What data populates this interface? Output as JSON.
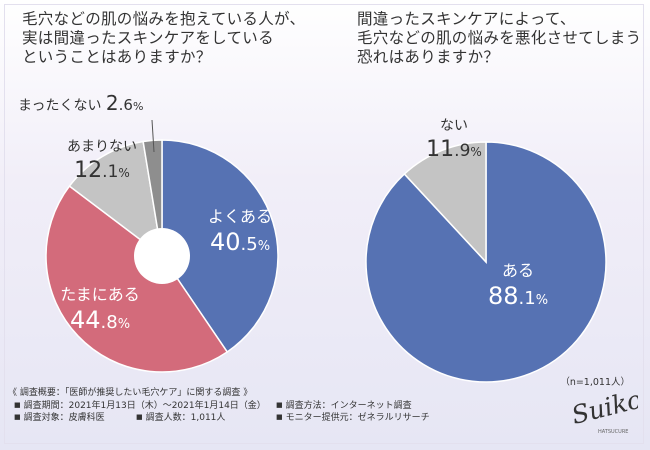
{
  "questions": {
    "left": "毛穴などの肌の悩みを抱えている人が、\n実は間違ったスキンケアをしている\nということはありますか？",
    "right": "間違ったスキンケアによって、\n毛穴などの肌の悩みを悪化させてしまう\n恐れはありますか？"
  },
  "chart_data": [
    {
      "type": "pie",
      "variant": "donut",
      "start_angle_deg": 0,
      "direction": "clockwise",
      "slices": [
        {
          "label": "よくある",
          "value": 40.5,
          "value_label": "40.5%",
          "color": "#5672b3"
        },
        {
          "label": "たまにある",
          "value": 44.8,
          "value_label": "44.8%",
          "color": "#d36b7b"
        },
        {
          "label": "あまりない",
          "value": 12.1,
          "value_label": "12.1%",
          "color": "#c4c4c4"
        },
        {
          "label": "まったくない",
          "value": 2.6,
          "value_label": "2.6%",
          "color": "#8e8e8e"
        }
      ]
    },
    {
      "type": "pie",
      "start_angle_deg": 0,
      "direction": "clockwise",
      "slices": [
        {
          "label": "ある",
          "value": 88.1,
          "value_label": "88.1%",
          "color": "#5672b3"
        },
        {
          "label": "ない",
          "value": 11.9,
          "value_label": "11.9%",
          "color": "#c4c4c4"
        }
      ]
    }
  ],
  "sample_note": "（n=1,011人）",
  "footer": {
    "title": "《 調査概要：「医師が推奨したい毛穴ケア」に関する調査 》",
    "period": "調査期間：2021年1月13日（木）〜2021年1月14日（金）",
    "method": "調査方法：インターネット調査",
    "target": "調査対象：皮膚科医",
    "count": "調査人数：1,011人",
    "provider": "モニター提供元：ゼネラルリサーチ"
  },
  "brand": {
    "name": "Suiko",
    "sub": "HATSUCURE"
  }
}
